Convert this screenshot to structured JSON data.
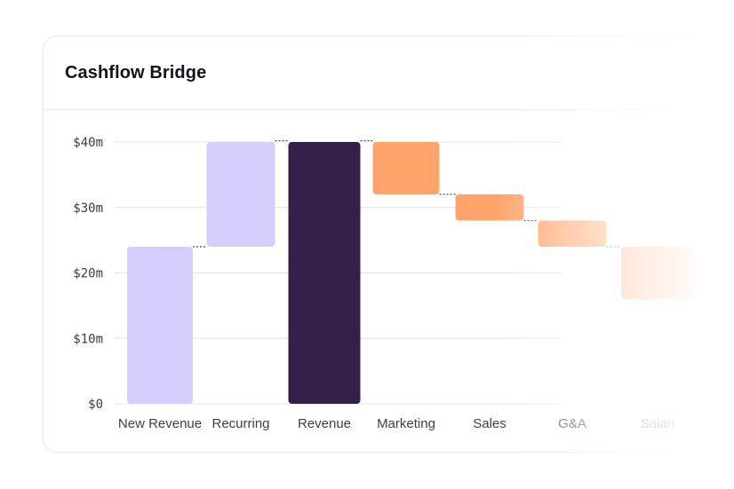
{
  "card": {
    "title": "Cashflow Bridge"
  },
  "chart_data": {
    "type": "waterfall",
    "title": "Cashflow Bridge",
    "xlabel": "",
    "ylabel": "",
    "ylim": [
      0,
      40
    ],
    "yticks": [
      0,
      10,
      20,
      30,
      40
    ],
    "ytick_labels": [
      "$0",
      "$10m",
      "$20m",
      "$30m",
      "$40m"
    ],
    "grid": true,
    "categories": [
      "New Revenue",
      "Recurring",
      "Revenue",
      "Marketing",
      "Sales",
      "G&A",
      "Salari"
    ],
    "bars": [
      {
        "label": "New Revenue",
        "start": 0,
        "end": 24,
        "kind": "increase"
      },
      {
        "label": "Recurring",
        "start": 24,
        "end": 40,
        "kind": "increase"
      },
      {
        "label": "Revenue",
        "start": 0,
        "end": 40,
        "kind": "total"
      },
      {
        "label": "Marketing",
        "start": 40,
        "end": 32,
        "kind": "decrease"
      },
      {
        "label": "Sales",
        "start": 32,
        "end": 28,
        "kind": "decrease"
      },
      {
        "label": "G&A",
        "start": 28,
        "end": 24,
        "kind": "decrease"
      },
      {
        "label": "Salari",
        "start": 24,
        "end": 16,
        "kind": "decrease"
      }
    ]
  },
  "colors": {
    "increase": "#d6cffd",
    "total": "#35204a",
    "decrease": "#ffa56b",
    "grid": "#e4e4e8",
    "connector": "#4a4a55"
  }
}
